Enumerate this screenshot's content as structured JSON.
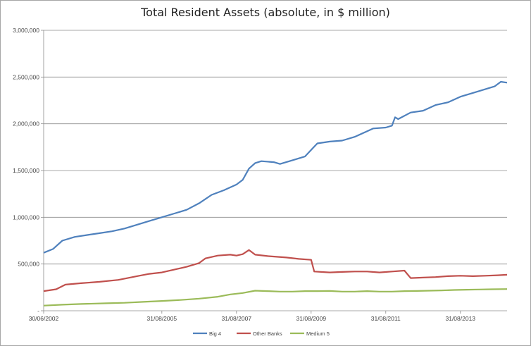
{
  "chart_data": {
    "type": "line",
    "title": "Total Resident Assets (absolute, in $ million)",
    "xlabel": "",
    "ylabel": "",
    "ylim": [
      0,
      3000000
    ],
    "y_ticks": [
      0,
      500000,
      1000000,
      1500000,
      2000000,
      2500000,
      3000000
    ],
    "y_tick_labels": [
      "-",
      "500,000",
      "1,000,000",
      "1,500,000",
      "2,000,000",
      "2,500,000",
      "3,000,000"
    ],
    "x_tick_labels": [
      "30/06/2002",
      "31/08/2005",
      "31/08/2007",
      "31/08/2009",
      "31/08/2011",
      "31/08/2013"
    ],
    "x_tick_positions": [
      0,
      38,
      62,
      86,
      110,
      134
    ],
    "x_range": [
      0,
      149
    ],
    "grid": true,
    "legend_position": "bottom",
    "series": [
      {
        "name": "Big 4",
        "color": "#4f81bd",
        "points": [
          [
            0,
            620000
          ],
          [
            3,
            660000
          ],
          [
            6,
            750000
          ],
          [
            10,
            790000
          ],
          [
            14,
            810000
          ],
          [
            18,
            830000
          ],
          [
            22,
            850000
          ],
          [
            26,
            880000
          ],
          [
            30,
            920000
          ],
          [
            34,
            960000
          ],
          [
            38,
            1000000
          ],
          [
            42,
            1040000
          ],
          [
            46,
            1080000
          ],
          [
            50,
            1150000
          ],
          [
            54,
            1240000
          ],
          [
            58,
            1290000
          ],
          [
            62,
            1350000
          ],
          [
            64,
            1400000
          ],
          [
            66,
            1520000
          ],
          [
            68,
            1580000
          ],
          [
            70,
            1600000
          ],
          [
            74,
            1590000
          ],
          [
            76,
            1570000
          ],
          [
            80,
            1610000
          ],
          [
            84,
            1650000
          ],
          [
            86,
            1720000
          ],
          [
            88,
            1790000
          ],
          [
            92,
            1810000
          ],
          [
            96,
            1820000
          ],
          [
            100,
            1860000
          ],
          [
            104,
            1920000
          ],
          [
            106,
            1950000
          ],
          [
            110,
            1960000
          ],
          [
            112,
            1980000
          ],
          [
            113,
            2070000
          ],
          [
            114,
            2050000
          ],
          [
            118,
            2120000
          ],
          [
            122,
            2140000
          ],
          [
            126,
            2200000
          ],
          [
            130,
            2230000
          ],
          [
            134,
            2290000
          ],
          [
            138,
            2330000
          ],
          [
            142,
            2370000
          ],
          [
            145,
            2400000
          ],
          [
            147,
            2450000
          ],
          [
            149,
            2440000
          ]
        ]
      },
      {
        "name": "Other Banks",
        "color": "#c0504d",
        "points": [
          [
            0,
            210000
          ],
          [
            4,
            230000
          ],
          [
            7,
            280000
          ],
          [
            12,
            295000
          ],
          [
            18,
            310000
          ],
          [
            24,
            330000
          ],
          [
            30,
            370000
          ],
          [
            34,
            395000
          ],
          [
            38,
            410000
          ],
          [
            42,
            440000
          ],
          [
            46,
            470000
          ],
          [
            50,
            510000
          ],
          [
            52,
            560000
          ],
          [
            56,
            590000
          ],
          [
            60,
            600000
          ],
          [
            62,
            590000
          ],
          [
            64,
            605000
          ],
          [
            66,
            650000
          ],
          [
            68,
            600000
          ],
          [
            72,
            585000
          ],
          [
            78,
            570000
          ],
          [
            82,
            555000
          ],
          [
            86,
            545000
          ],
          [
            87,
            420000
          ],
          [
            92,
            410000
          ],
          [
            96,
            415000
          ],
          [
            100,
            420000
          ],
          [
            104,
            420000
          ],
          [
            108,
            410000
          ],
          [
            112,
            420000
          ],
          [
            116,
            430000
          ],
          [
            118,
            350000
          ],
          [
            122,
            355000
          ],
          [
            126,
            360000
          ],
          [
            130,
            370000
          ],
          [
            134,
            375000
          ],
          [
            138,
            370000
          ],
          [
            142,
            375000
          ],
          [
            146,
            380000
          ],
          [
            149,
            385000
          ]
        ]
      },
      {
        "name": "Medium 5",
        "color": "#9bbb59",
        "points": [
          [
            0,
            55000
          ],
          [
            6,
            65000
          ],
          [
            12,
            72000
          ],
          [
            20,
            80000
          ],
          [
            26,
            85000
          ],
          [
            32,
            95000
          ],
          [
            38,
            105000
          ],
          [
            44,
            115000
          ],
          [
            50,
            130000
          ],
          [
            56,
            150000
          ],
          [
            60,
            175000
          ],
          [
            64,
            190000
          ],
          [
            68,
            215000
          ],
          [
            72,
            210000
          ],
          [
            76,
            205000
          ],
          [
            80,
            205000
          ],
          [
            84,
            210000
          ],
          [
            88,
            210000
          ],
          [
            92,
            212000
          ],
          [
            96,
            205000
          ],
          [
            100,
            205000
          ],
          [
            104,
            210000
          ],
          [
            108,
            205000
          ],
          [
            112,
            205000
          ],
          [
            116,
            210000
          ],
          [
            120,
            212000
          ],
          [
            124,
            215000
          ],
          [
            128,
            218000
          ],
          [
            132,
            222000
          ],
          [
            136,
            225000
          ],
          [
            140,
            228000
          ],
          [
            144,
            230000
          ],
          [
            149,
            232000
          ]
        ]
      }
    ]
  }
}
